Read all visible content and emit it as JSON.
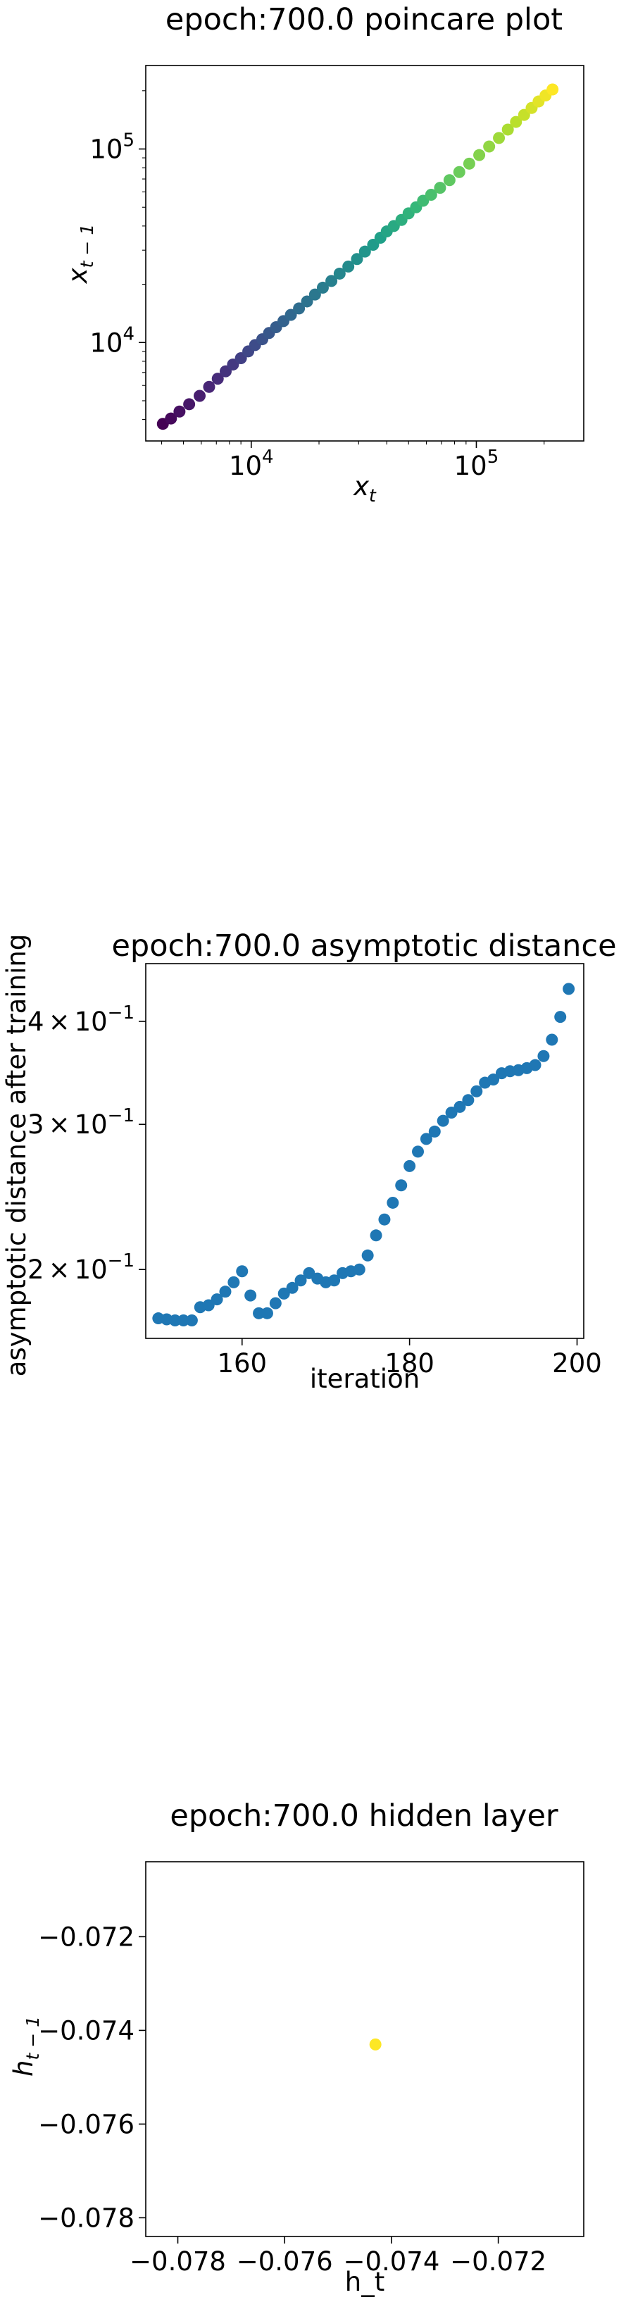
{
  "chart_data": [
    {
      "type": "scatter",
      "title": "epoch:700.0 poincare plot",
      "xlabel": "x_t",
      "ylabel": "x_{t-1}",
      "xscale": "log",
      "yscale": "log",
      "xlim": [
        3400,
        300000
      ],
      "ylim": [
        3100,
        270000
      ],
      "xticks": [
        {
          "value": 10000,
          "mantissa": "10",
          "exp": "4"
        },
        {
          "value": 100000,
          "mantissa": "10",
          "exp": "5"
        }
      ],
      "yticks": [
        {
          "value": 10000,
          "mantissa": "10",
          "exp": "4"
        },
        {
          "value": 100000,
          "mantissa": "10",
          "exp": "5"
        }
      ],
      "colormap": "viridis",
      "x": [
        4050,
        4400,
        4800,
        5300,
        5900,
        6500,
        7100,
        7700,
        8300,
        9000,
        9700,
        10400,
        11200,
        12000,
        12900,
        13900,
        15000,
        16300,
        17700,
        19200,
        20800,
        22700,
        24700,
        27000,
        29500,
        32000,
        34800,
        37500,
        40000,
        43000,
        46500,
        50000,
        54000,
        58000,
        63000,
        69000,
        76000,
        84000,
        93000,
        103000,
        114000,
        126000,
        138000,
        150000,
        163000,
        176000,
        189000,
        203000,
        218000
      ],
      "y": [
        3800,
        4050,
        4400,
        4800,
        5300,
        5900,
        6500,
        7100,
        7700,
        8300,
        9000,
        9700,
        10400,
        11200,
        12000,
        12900,
        13900,
        15000,
        16300,
        17700,
        19200,
        20800,
        22700,
        24700,
        27000,
        29500,
        32000,
        34800,
        37500,
        40000,
        43000,
        46500,
        50000,
        54000,
        58000,
        63000,
        69000,
        76000,
        84000,
        93000,
        103000,
        114000,
        126000,
        138000,
        150000,
        163000,
        176000,
        189000,
        203000
      ]
    },
    {
      "type": "scatter",
      "title": "epoch:700.0 asymptotic distance",
      "xlabel": "iteration",
      "ylabel": "asymptotic distance after training",
      "yscale": "log",
      "xlim": [
        148.5,
        200.8
      ],
      "ylim": [
        0.165,
        0.47
      ],
      "xticks": [
        {
          "value": 160,
          "label": "160"
        },
        {
          "value": 180,
          "label": "180"
        },
        {
          "value": 200,
          "label": "200"
        }
      ],
      "yticks": [
        {
          "value": 0.2,
          "mantissa": "2",
          "times": "×",
          "base": "10",
          "exp": "−1"
        },
        {
          "value": 0.3,
          "mantissa": "3",
          "times": "×",
          "base": "10",
          "exp": "−1"
        },
        {
          "value": 0.4,
          "mantissa": "4",
          "times": "×",
          "base": "10",
          "exp": "−1"
        }
      ],
      "color": "#1f77b4",
      "x": [
        150,
        151,
        152,
        153,
        154,
        155,
        156,
        157,
        158,
        159,
        160,
        161,
        162,
        163,
        164,
        165,
        166,
        167,
        168,
        169,
        170,
        171,
        172,
        173,
        174,
        175,
        176,
        177,
        178,
        179,
        180,
        181,
        182,
        183,
        184,
        185,
        186,
        187,
        188,
        189,
        190,
        191,
        192,
        193,
        194,
        195,
        196,
        197,
        198,
        199
      ],
      "y": [
        0.1745,
        0.174,
        0.1735,
        0.1735,
        0.1735,
        0.18,
        0.181,
        0.184,
        0.188,
        0.193,
        0.199,
        0.186,
        0.177,
        0.177,
        0.182,
        0.187,
        0.19,
        0.194,
        0.198,
        0.195,
        0.193,
        0.194,
        0.198,
        0.199,
        0.2,
        0.208,
        0.22,
        0.23,
        0.241,
        0.253,
        0.267,
        0.278,
        0.288,
        0.294,
        0.303,
        0.31,
        0.315,
        0.321,
        0.329,
        0.337,
        0.34,
        0.346,
        0.348,
        0.349,
        0.351,
        0.354,
        0.363,
        0.38,
        0.405,
        0.438
      ]
    },
    {
      "type": "scatter",
      "title": "epoch:700.0 hidden layer",
      "xlabel": "h_t",
      "ylabel": "h_{t-1}",
      "xlim": [
        -0.0786,
        -0.0704
      ],
      "ylim": [
        -0.0784,
        -0.0704
      ],
      "xticks": [
        {
          "value": -0.078,
          "label": "−0.078"
        },
        {
          "value": -0.076,
          "label": "−0.076"
        },
        {
          "value": -0.074,
          "label": "−0.074"
        },
        {
          "value": -0.072,
          "label": "−0.072"
        }
      ],
      "yticks": [
        {
          "value": -0.078,
          "label": "−0.078"
        },
        {
          "value": -0.076,
          "label": "−0.076"
        },
        {
          "value": -0.074,
          "label": "−0.074"
        },
        {
          "value": -0.072,
          "label": "−0.072"
        }
      ],
      "color": "#fde725",
      "x": [
        -0.0743
      ],
      "y": [
        -0.0743
      ]
    }
  ]
}
